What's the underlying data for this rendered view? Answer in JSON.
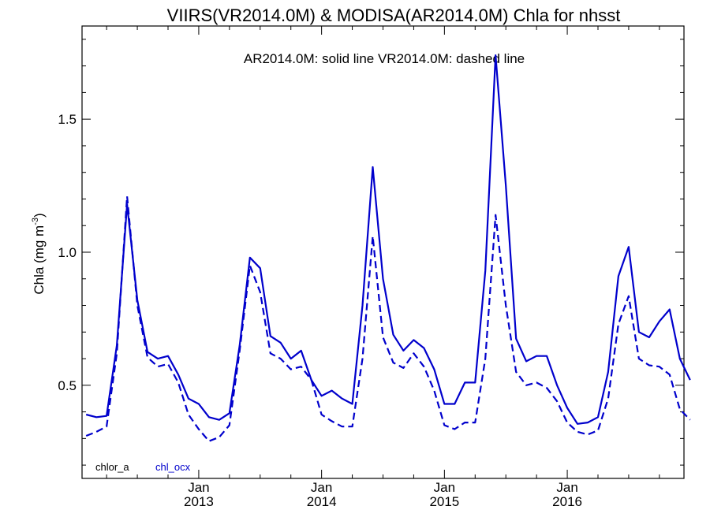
{
  "chart_data": {
    "type": "line",
    "title": "VIIRS(VR2014.0M) & MODISA(AR2014.0M)  Chla for nhsst",
    "annotation": "AR2014.0M: solid line   VR2014.0M: dashed line",
    "ylabel": "Chla (mg m",
    "ylabel_sup": "-3",
    "ylabel_end": ")",
    "ylim": [
      0.15,
      1.85
    ],
    "yticks": [
      0.5,
      1.0,
      1.5
    ],
    "ytick_labels": [
      "0.5",
      "1.0",
      "1.5"
    ],
    "xlim": [
      2012.05,
      2016.95
    ],
    "xticks": [
      {
        "month": "Jan",
        "year": "2013",
        "x": 2013.0
      },
      {
        "month": "Jan",
        "year": "2014",
        "x": 2014.0
      },
      {
        "month": "Jan",
        "year": "2015",
        "x": 2015.0
      },
      {
        "month": "Jan",
        "year": "2016",
        "x": 2016.0
      }
    ],
    "legend": [
      {
        "label": "chlor_a",
        "color": "#000000"
      },
      {
        "label": "chl_ocx",
        "color": "#0000cc"
      }
    ],
    "line_color": "#0000cc",
    "x_start_year": 2012.0,
    "x_step_years": 0.08333,
    "series": [
      {
        "name": "AR2014.0M",
        "style": "solid",
        "values": [
          null,
          0.39,
          0.38,
          0.385,
          0.65,
          1.18,
          0.82,
          0.625,
          0.6,
          0.61,
          0.54,
          0.45,
          0.43,
          0.38,
          0.37,
          0.395,
          0.65,
          0.98,
          0.94,
          0.685,
          0.66,
          0.6,
          0.63,
          0.52,
          0.46,
          0.48,
          0.45,
          0.43,
          0.8,
          1.32,
          0.9,
          0.69,
          0.63,
          0.67,
          0.64,
          0.56,
          0.43,
          0.43,
          0.51,
          0.51,
          0.93,
          1.74,
          1.25,
          0.675,
          0.59,
          0.61,
          0.61,
          0.5,
          0.415,
          0.355,
          0.36,
          0.38,
          0.55,
          0.91,
          1.02,
          0.7,
          0.68,
          0.74,
          0.785,
          0.6,
          0.52
        ]
      },
      {
        "name": "VR2014.0M",
        "style": "dashed",
        "values": [
          null,
          0.31,
          0.325,
          0.345,
          0.62,
          1.21,
          0.8,
          0.605,
          0.57,
          0.58,
          0.51,
          0.39,
          0.335,
          0.29,
          0.305,
          0.35,
          0.63,
          0.95,
          0.85,
          0.62,
          0.6,
          0.56,
          0.57,
          0.52,
          0.39,
          0.365,
          0.345,
          0.345,
          0.6,
          1.06,
          0.68,
          0.585,
          0.565,
          0.62,
          0.57,
          0.48,
          0.35,
          0.335,
          0.36,
          0.36,
          0.6,
          1.14,
          0.8,
          0.55,
          0.5,
          0.51,
          0.49,
          0.44,
          0.36,
          0.325,
          0.315,
          0.33,
          0.45,
          0.73,
          0.835,
          0.6,
          0.575,
          0.57,
          0.54,
          0.41,
          0.37
        ]
      }
    ]
  }
}
